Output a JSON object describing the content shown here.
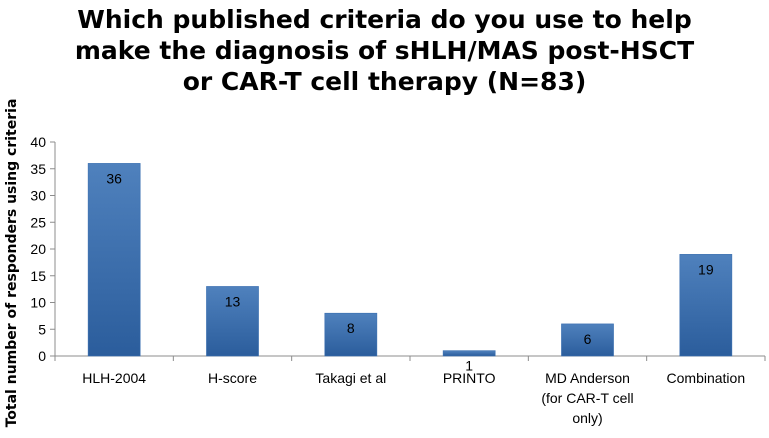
{
  "chart_data": {
    "type": "bar",
    "title_lines": [
      "Which published criteria do you use to help",
      "make the diagnosis of sHLH/MAS post-HSCT",
      "or CAR-T cell therapy (N=83)"
    ],
    "ylabel": "Total number of responders using criteria",
    "xlabel": "",
    "categories": [
      [
        "HLH-2004"
      ],
      [
        "H-score"
      ],
      [
        "Takagi et al"
      ],
      [
        "PRINTO"
      ],
      [
        "MD Anderson",
        "(for CAR-T cell",
        "only)"
      ],
      [
        "Combination"
      ]
    ],
    "values": [
      36,
      13,
      8,
      1,
      6,
      19
    ],
    "data_labels": [
      "36",
      "13",
      "8",
      "1",
      "6",
      "19"
    ],
    "ylim": [
      0,
      40
    ],
    "yticks": [
      0,
      5,
      10,
      15,
      20,
      25,
      30,
      35,
      40
    ],
    "grid": false,
    "legend": "none",
    "colors": {
      "bar_top": "#4f81bd",
      "bar_bottom": "#2b5d9c",
      "axis": "#8c8c8c"
    }
  }
}
